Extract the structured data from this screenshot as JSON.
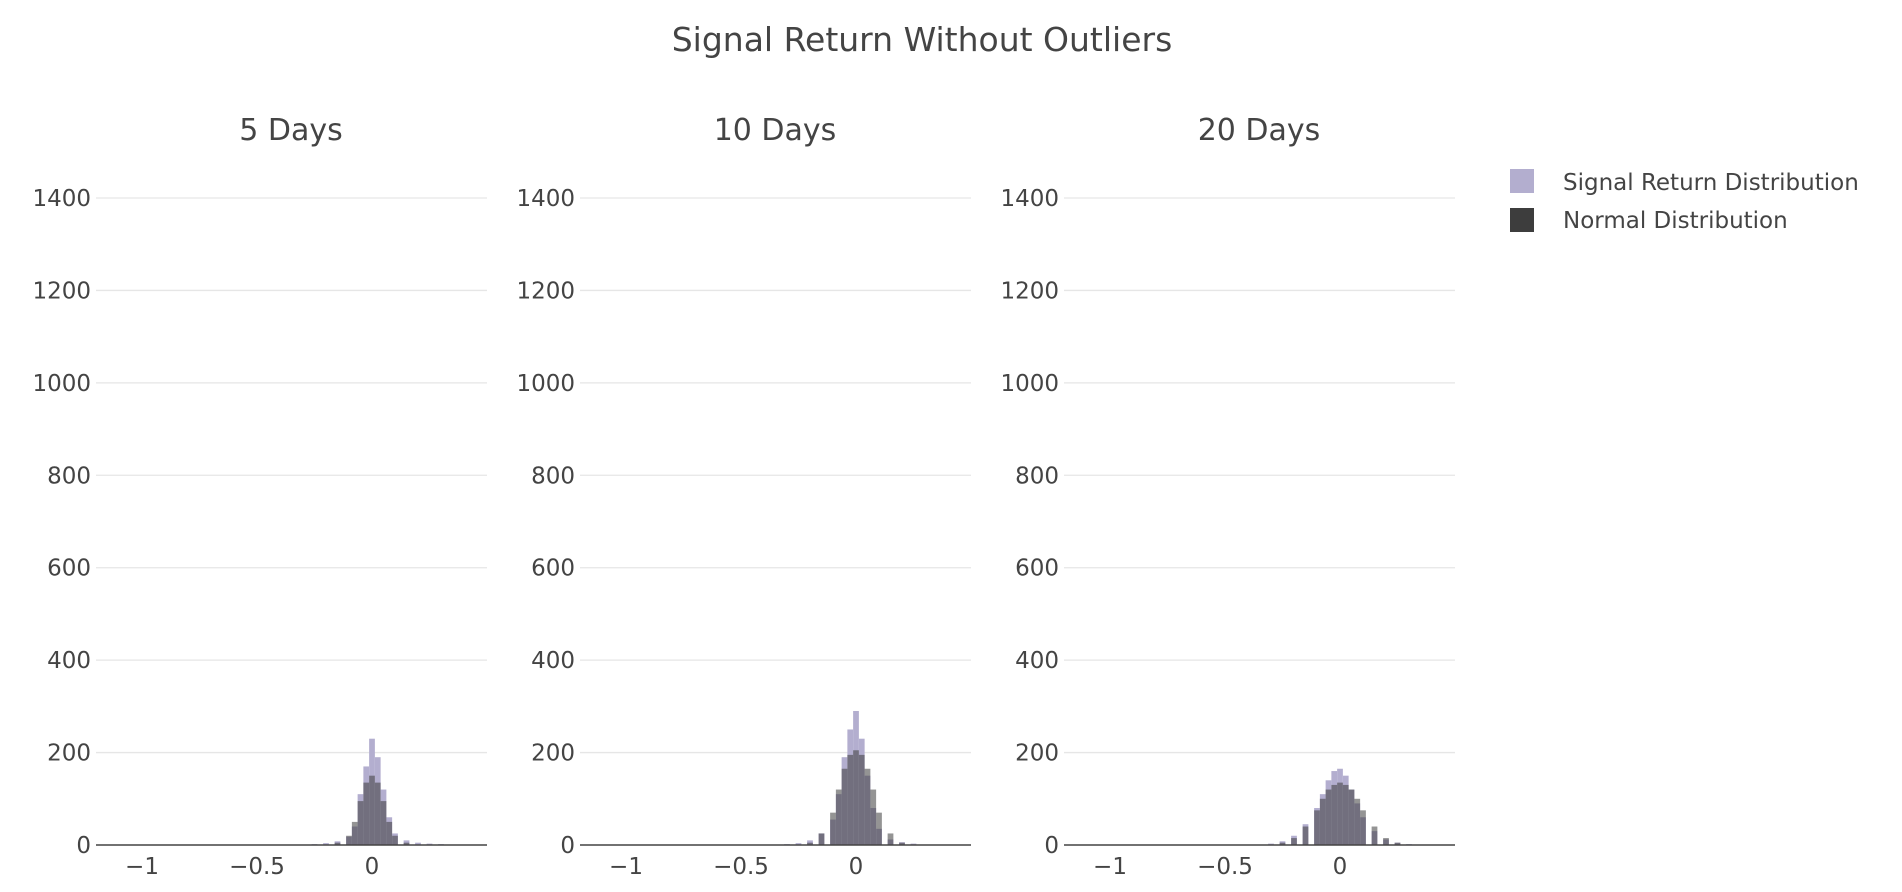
{
  "chart_data": {
    "type": "bar",
    "title": "Signal Return Without Outliers",
    "barmode": "overlay",
    "grid": true,
    "legend_placement": "top-right",
    "colors": {
      "signal": "#b3aecf",
      "normal": "#3d3d3d",
      "text": "#444444",
      "grid": "#e6e6e6",
      "axis": "#444444"
    },
    "legend": [
      "Signal Return Distribution",
      "Normal Distribution"
    ],
    "xlim": [
      -1.2,
      0.5
    ],
    "ylim": [
      0,
      1400
    ],
    "xticks": [
      -1,
      -0.5,
      0
    ],
    "xtick_labels": [
      "−1",
      "−0.5",
      "0"
    ],
    "yticks": [
      0,
      200,
      400,
      600,
      800,
      1000,
      1200,
      1400
    ],
    "ytick_labels": [
      "0",
      "200",
      "400",
      "600",
      "800",
      "1000",
      "1200",
      "1400"
    ],
    "panels": [
      {
        "subtitle": "5 Days",
        "series": [
          {
            "name": "Signal Return Distribution",
            "x": [
              -0.3,
              -0.25,
              -0.2,
              -0.15,
              -0.1,
              -0.075,
              -0.05,
              -0.025,
              0,
              0.025,
              0.05,
              0.075,
              0.1,
              0.15,
              0.2,
              0.25,
              0.3,
              0.35
            ],
            "values": [
              1,
              2,
              4,
              8,
              18,
              40,
              110,
              170,
              230,
              190,
              120,
              60,
              25,
              10,
              5,
              3,
              2,
              1
            ]
          },
          {
            "name": "Normal Distribution",
            "x": [
              -0.15,
              -0.1,
              -0.075,
              -0.05,
              -0.025,
              0,
              0.025,
              0.05,
              0.075,
              0.1,
              0.15
            ],
            "values": [
              5,
              20,
              50,
              95,
              135,
              150,
              135,
              95,
              50,
              20,
              5
            ]
          }
        ]
      },
      {
        "subtitle": "10 Days",
        "series": [
          {
            "name": "Signal Return Distribution",
            "x": [
              -0.3,
              -0.25,
              -0.2,
              -0.15,
              -0.1,
              -0.075,
              -0.05,
              -0.025,
              0,
              0.025,
              0.05,
              0.075,
              0.1,
              0.15,
              0.2,
              0.25,
              0.3
            ],
            "values": [
              2,
              4,
              10,
              25,
              55,
              110,
              190,
              250,
              290,
              230,
              150,
              80,
              35,
              12,
              6,
              3,
              1
            ]
          },
          {
            "name": "Normal Distribution",
            "x": [
              -0.2,
              -0.15,
              -0.1,
              -0.075,
              -0.05,
              -0.025,
              0,
              0.025,
              0.05,
              0.075,
              0.1,
              0.15,
              0.2
            ],
            "values": [
              5,
              25,
              70,
              120,
              165,
              195,
              205,
              195,
              165,
              120,
              70,
              25,
              5
            ]
          }
        ]
      },
      {
        "subtitle": "20 Days",
        "series": [
          {
            "name": "Signal Return Distribution",
            "x": [
              -0.3,
              -0.25,
              -0.2,
              -0.15,
              -0.1,
              -0.075,
              -0.05,
              -0.025,
              0,
              0.025,
              0.05,
              0.075,
              0.1,
              0.15,
              0.2,
              0.25,
              0.3
            ],
            "values": [
              3,
              8,
              20,
              45,
              80,
              110,
              140,
              160,
              165,
              150,
              120,
              90,
              60,
              30,
              12,
              5,
              2
            ]
          },
          {
            "name": "Normal Distribution",
            "x": [
              -0.25,
              -0.2,
              -0.15,
              -0.1,
              -0.075,
              -0.05,
              -0.025,
              0,
              0.025,
              0.05,
              0.075,
              0.1,
              0.15,
              0.2,
              0.25
            ],
            "values": [
              5,
              15,
              40,
              75,
              100,
              120,
              130,
              135,
              130,
              120,
              100,
              75,
              40,
              15,
              5
            ]
          }
        ]
      }
    ]
  }
}
